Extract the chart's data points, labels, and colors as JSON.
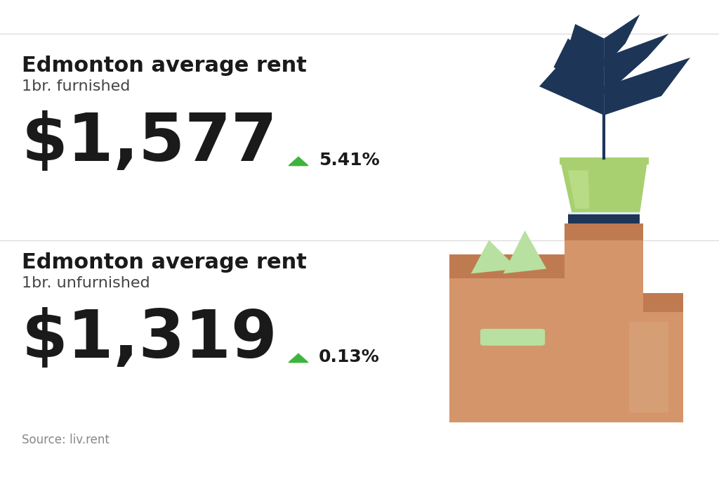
{
  "background_color": "#ffffff",
  "divider_color": "#dddddd",
  "title_color": "#1a1a1a",
  "subtitle_color": "#444444",
  "price_color": "#1a1a1a",
  "arrow_color": "#3db53d",
  "pct_color": "#1a1a1a",
  "source_color": "#888888",
  "section1_title": "Edmonton average rent",
  "section1_subtitle": "1br. furnished",
  "section1_price": "$1,577",
  "section1_pct": "5.41%",
  "section2_title": "Edmonton average rent",
  "section2_subtitle": "1br. unfurnished",
  "section2_price": "$1,319",
  "section2_pct": "0.13%",
  "source_text": "Source: liv.rent",
  "title_fontsize": 22,
  "subtitle_fontsize": 16,
  "price_fontsize": 68,
  "pct_fontsize": 18,
  "source_fontsize": 12
}
